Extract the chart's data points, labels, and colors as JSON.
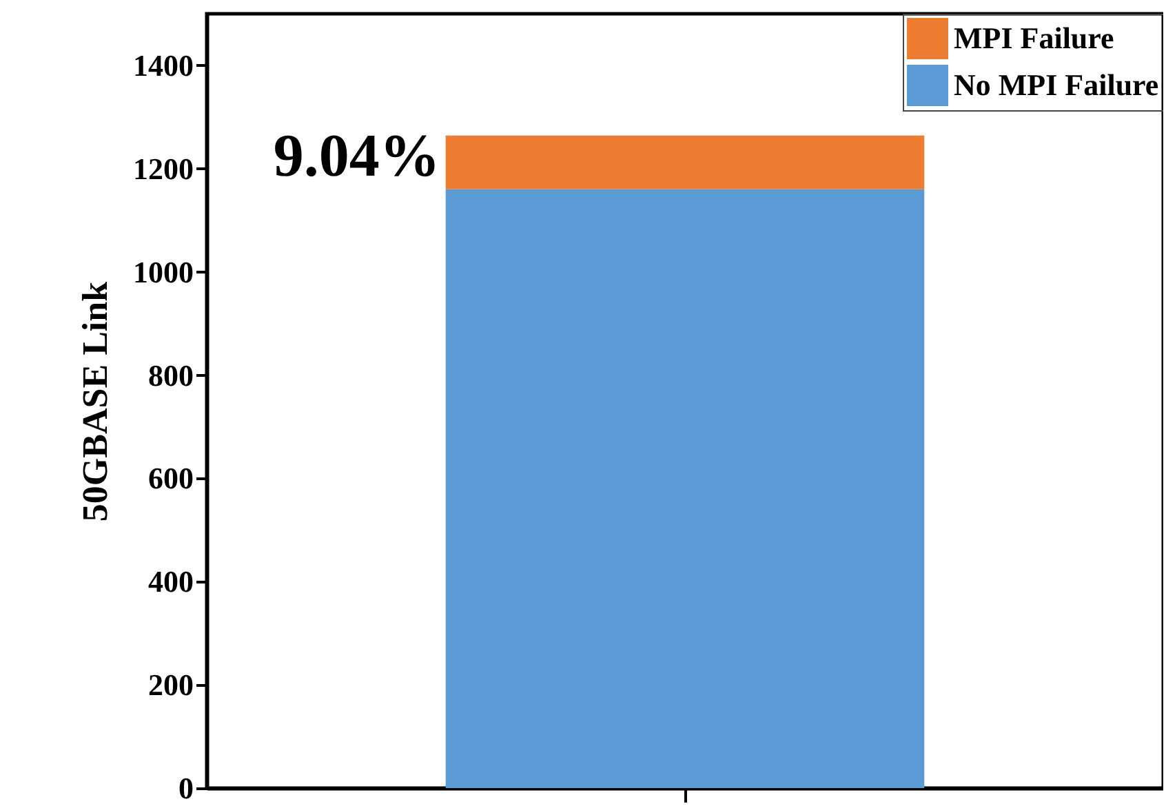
{
  "chart_data": {
    "type": "bar",
    "stacked": true,
    "ylabel": "50GBASE Link",
    "categories": [
      null
    ],
    "series": [
      {
        "name": "No MPI Failure",
        "color": "#5b9bd5",
        "values": [
          1160
        ]
      },
      {
        "name": "MPI Failure",
        "color": "#ed7d31",
        "values": [
          104
        ]
      }
    ],
    "ylim": [
      0,
      1500
    ],
    "yticks": [
      0,
      200,
      400,
      600,
      800,
      1000,
      1200,
      1400
    ],
    "annotations": [
      "9.04%"
    ],
    "legend": "top right",
    "grid": false
  }
}
